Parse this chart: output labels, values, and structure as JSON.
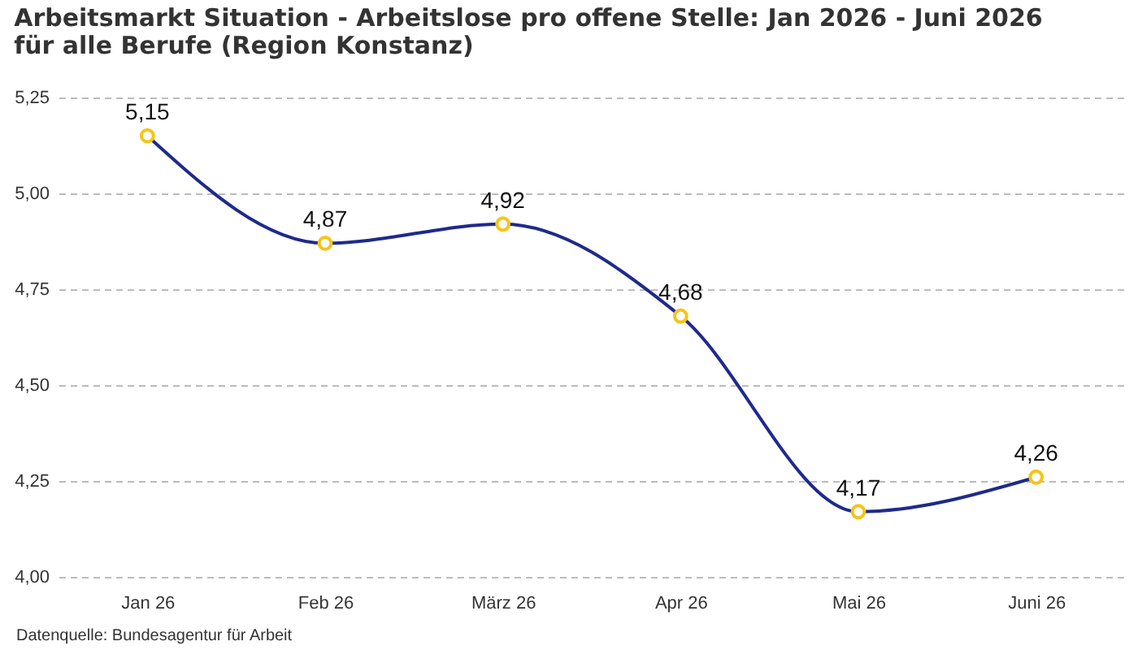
{
  "chart_data": {
    "type": "line",
    "title": "Arbeitsmarkt Situation - Arbeitslose pro offene Stelle: Jan 2026 - Juni 2026 für alle Berufe (Region Konstanz)",
    "categories": [
      "Jan 26",
      "Feb 26",
      "März 26",
      "Apr 26",
      "Mai 26",
      "Juni 26"
    ],
    "series": [
      {
        "color": "#1f2a8c",
        "values": [
          5.15,
          4.87,
          4.92,
          4.68,
          4.17,
          4.26
        ],
        "value_labels": [
          "5,15",
          "4,87",
          "4,92",
          "4,68",
          "4,17",
          "4,26"
        ]
      }
    ],
    "ylim": [
      4,
      5.25
    ],
    "yticks": [
      {
        "value": 4,
        "label": "4,00"
      },
      {
        "value": 4.25,
        "label": "4,25"
      },
      {
        "value": 4.5,
        "label": "4,50"
      },
      {
        "value": 4.75,
        "label": "4,75"
      },
      {
        "value": 5,
        "label": "5,00"
      },
      {
        "value": 5.25,
        "label": "5,25"
      }
    ],
    "grid": "y",
    "marker": "circle",
    "line_style": "solid",
    "annotations": [
      "Datenquelle: Bundesagentur für Arbeit"
    ]
  }
}
